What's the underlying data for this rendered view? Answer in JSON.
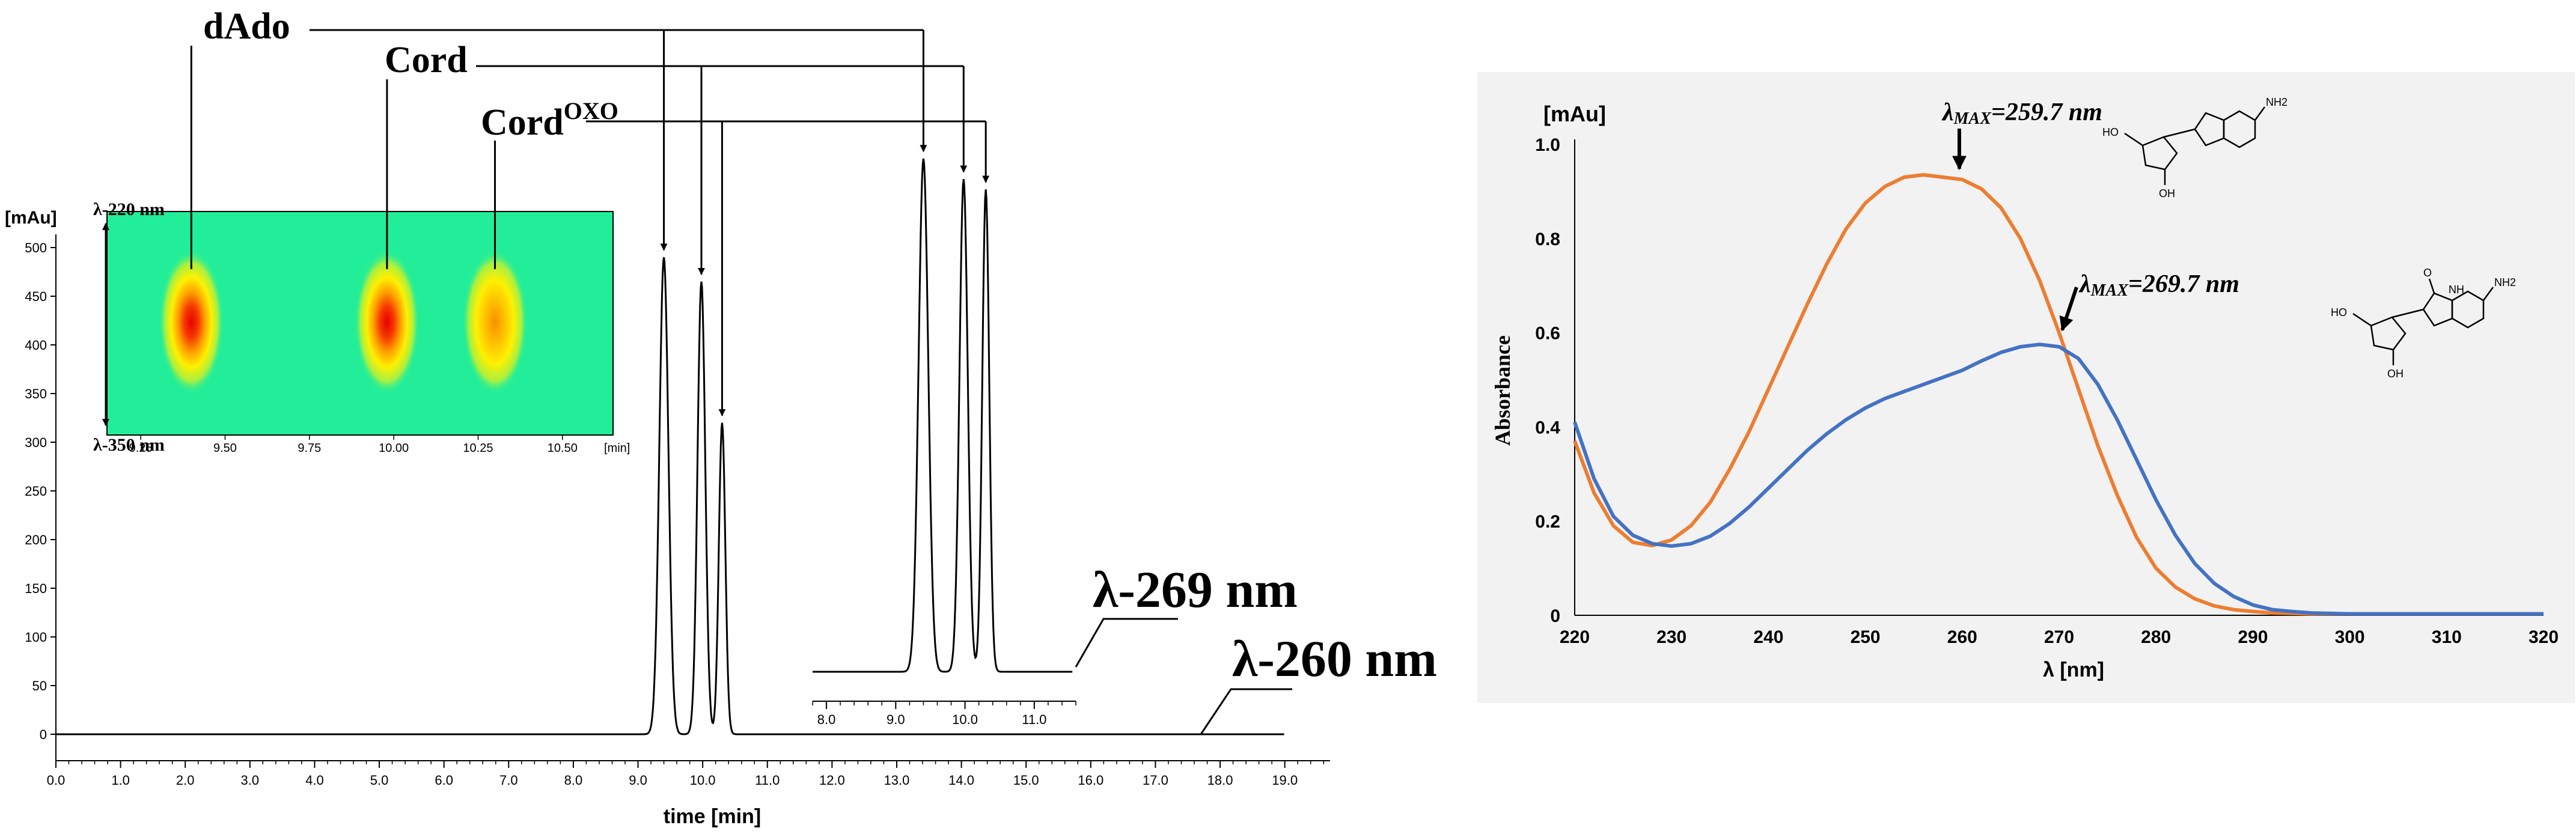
{
  "colors": {
    "orange": "#ED7D31",
    "blue": "#4472C4",
    "trace": "#000000",
    "heatmap_bg": "#22EE99",
    "panel_bg": "#F2F2F2"
  },
  "chart_data": [
    {
      "type": "line",
      "id": "chromatogram",
      "xlabel": "time [min]",
      "ylabel": "[mAu]",
      "xlim": [
        0.0,
        19.7
      ],
      "ylim": [
        -25,
        530
      ],
      "x_ticks": [
        "0.0",
        "1.0",
        "2.0",
        "3.0",
        "4.0",
        "5.0",
        "6.0",
        "7.0",
        "8.0",
        "9.0",
        "10.0",
        "11.0",
        "12.0",
        "13.0",
        "14.0",
        "15.0",
        "16.0",
        "17.0",
        "18.0",
        "19.0"
      ],
      "y_ticks": [
        "0",
        "50",
        "100",
        "150",
        "200",
        "250",
        "300",
        "350",
        "400",
        "450",
        "500"
      ],
      "series": [
        {
          "name": "λ-260 nm",
          "peaks": [
            {
              "label": "dAdo",
              "x": 9.4,
              "y": 490
            },
            {
              "label": "Cord",
              "x": 9.98,
              "y": 465
            },
            {
              "label": "Cord",
              "label_sup": "OXO",
              "x": 10.3,
              "y": 320
            }
          ]
        }
      ]
    },
    {
      "type": "line",
      "id": "chromatogram-inset-269",
      "title": "λ-269 nm",
      "xlim": [
        7.8,
        11.6
      ],
      "x_ticks": [
        "8.0",
        "9.0",
        "10.0",
        "11.0"
      ],
      "series": [
        {
          "name": "λ-269 nm",
          "peaks": [
            {
              "x": 9.4,
              "rel": 1.0
            },
            {
              "x": 9.98,
              "rel": 0.96
            },
            {
              "x": 10.3,
              "rel": 0.94
            }
          ]
        }
      ]
    },
    {
      "type": "heatmap",
      "id": "dad-heatmap",
      "y_labels": [
        "λ-220 nm",
        "λ-350 nm"
      ],
      "xlim": [
        9.15,
        10.65
      ],
      "x_ticks": [
        "9.25",
        "9.50",
        "9.75",
        "10.00",
        "10.25",
        "10.50"
      ],
      "x_unit": "[min]",
      "spots": [
        {
          "x": 9.4,
          "intensity": 1.0
        },
        {
          "x": 9.98,
          "intensity": 1.0
        },
        {
          "x": 10.3,
          "intensity": 0.75
        }
      ]
    },
    {
      "type": "line",
      "id": "uv-spectrum",
      "xlabel": "λ [nm]",
      "ylabel": "Absorbance",
      "yunit": "[mAu]",
      "xlim": [
        220,
        320
      ],
      "ylim": [
        0,
        1.0
      ],
      "x_ticks": [
        "220",
        "230",
        "240",
        "250",
        "260",
        "270",
        "280",
        "290",
        "300",
        "310",
        "320"
      ],
      "y_ticks": [
        "0",
        "0.2",
        "0.4",
        "0.6",
        "0.8",
        "1.0"
      ],
      "series": [
        {
          "color": "#ED7D31",
          "x": [
            220,
            222,
            224,
            226,
            228,
            230,
            232,
            234,
            236,
            238,
            240,
            242,
            244,
            246,
            248,
            250,
            252,
            254,
            256,
            258,
            260,
            262,
            264,
            266,
            268,
            270,
            272,
            274,
            276,
            278,
            280,
            282,
            284,
            286,
            288,
            290,
            292,
            294,
            296,
            298,
            300,
            305,
            310,
            315,
            320
          ],
          "y": [
            0.37,
            0.26,
            0.19,
            0.155,
            0.148,
            0.16,
            0.19,
            0.24,
            0.31,
            0.39,
            0.48,
            0.57,
            0.66,
            0.745,
            0.82,
            0.875,
            0.91,
            0.93,
            0.935,
            0.93,
            0.925,
            0.905,
            0.865,
            0.8,
            0.71,
            0.6,
            0.48,
            0.36,
            0.255,
            0.165,
            0.1,
            0.06,
            0.035,
            0.02,
            0.012,
            0.008,
            0.005,
            0.004,
            0.003,
            0.003,
            0.003,
            0.003,
            0.003,
            0.003,
            0.003
          ]
        },
        {
          "color": "#4472C4",
          "x": [
            220,
            222,
            224,
            226,
            228,
            230,
            232,
            234,
            236,
            238,
            240,
            242,
            244,
            246,
            248,
            250,
            252,
            254,
            256,
            258,
            260,
            262,
            264,
            266,
            268,
            270,
            272,
            274,
            276,
            278,
            280,
            282,
            284,
            286,
            288,
            290,
            292,
            294,
            296,
            298,
            300,
            305,
            310,
            315,
            320
          ],
          "y": [
            0.41,
            0.29,
            0.21,
            0.17,
            0.152,
            0.147,
            0.152,
            0.168,
            0.195,
            0.23,
            0.27,
            0.31,
            0.35,
            0.385,
            0.415,
            0.44,
            0.46,
            0.475,
            0.49,
            0.505,
            0.52,
            0.54,
            0.558,
            0.57,
            0.575,
            0.57,
            0.545,
            0.49,
            0.415,
            0.33,
            0.245,
            0.17,
            0.11,
            0.068,
            0.04,
            0.022,
            0.012,
            0.008,
            0.005,
            0.004,
            0.003,
            0.003,
            0.003,
            0.003,
            0.003
          ]
        }
      ],
      "annotations": [
        {
          "symbol": "λ",
          "sub": "MAX",
          "value": "=259.7 nm",
          "x": 259.7,
          "y": 0.93
        },
        {
          "symbol": "λ",
          "sub": "MAX",
          "value": "=269.7 nm",
          "x": 269.7,
          "y": 0.575
        }
      ],
      "structures": [
        {
          "substituents": [
            "NH2",
            "HO",
            "OH"
          ]
        },
        {
          "substituents": [
            "NH2",
            "NH",
            "O",
            "HO",
            "OH"
          ]
        }
      ]
    }
  ]
}
